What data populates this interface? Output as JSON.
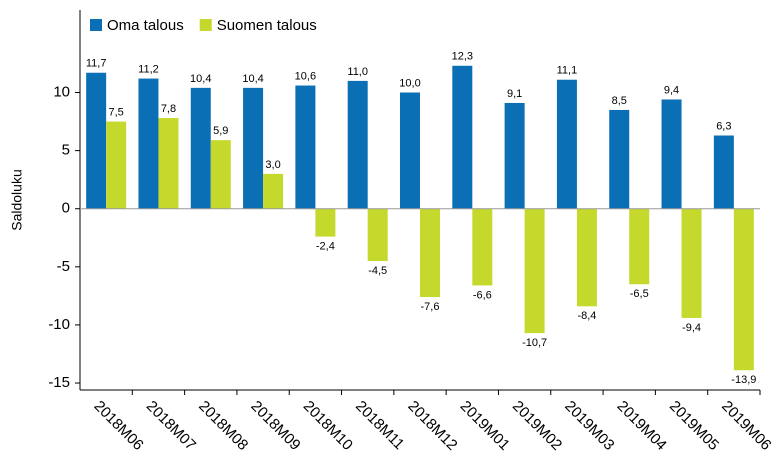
{
  "chart_data": {
    "type": "bar",
    "y_label": "Saldoluku",
    "categories": [
      "2018M06",
      "2018M07",
      "2018M08",
      "2018M09",
      "2018M10",
      "2018M11",
      "2018M12",
      "2019M01",
      "2019M02",
      "2019M03",
      "2019M04",
      "2019M05",
      "2019M06"
    ],
    "series": [
      {
        "name": "Oma talous",
        "color": "#0b6fb5",
        "values": [
          11.7,
          11.2,
          10.4,
          10.4,
          10.6,
          11.0,
          10.0,
          12.3,
          9.1,
          11.1,
          8.5,
          9.4,
          6.3
        ],
        "value_labels": [
          "11,7",
          "11,2",
          "10,4",
          "10,4",
          "10,6",
          "11,0",
          "10,0",
          "12,3",
          "9,1",
          "11,1",
          "8,5",
          "9,4",
          "6,3"
        ]
      },
      {
        "name": "Suomen talous",
        "color": "#c5d92c",
        "values": [
          7.5,
          7.8,
          5.9,
          3.0,
          -2.4,
          -4.5,
          -7.6,
          -6.6,
          -10.7,
          -8.4,
          -6.5,
          -9.4,
          -13.9
        ],
        "value_labels": [
          "7,5",
          "7,8",
          "5,9",
          "3,0",
          "-2,4",
          "-4,5",
          "-7,6",
          "-6,6",
          "-10,7",
          "-8,4",
          "-6,5",
          "-9,4",
          "-13,9"
        ]
      }
    ],
    "ylim": [
      -15.6,
      17.1
    ],
    "yticks": [
      -15,
      -10,
      -5,
      0,
      5,
      10
    ],
    "legend": "top-left"
  }
}
